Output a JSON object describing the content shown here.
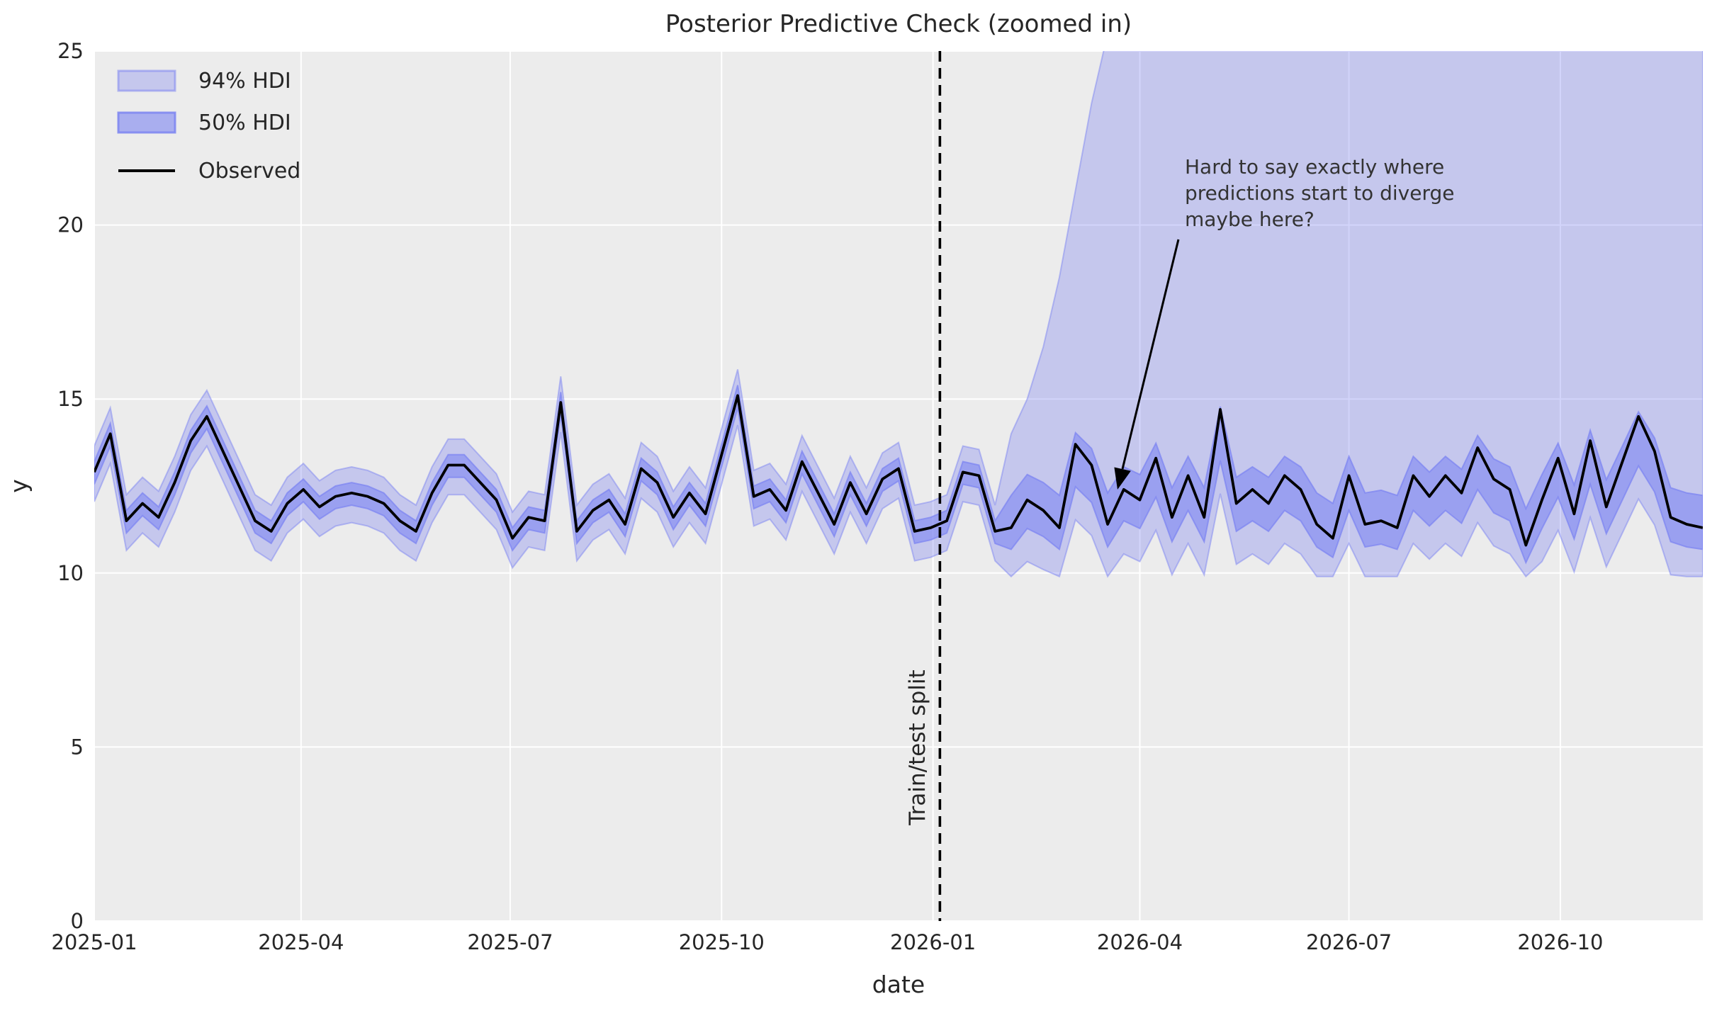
{
  "title": "Posterior Predictive Check (zoomed in)",
  "axes": {
    "xlabel": "date",
    "ylabel": "y",
    "x_tick_labels": [
      "2025-01",
      "2025-04",
      "2025-07",
      "2025-10",
      "2026-01",
      "2026-04",
      "2026-07",
      "2026-10"
    ],
    "y_tick_labels": [
      "0",
      "5",
      "10",
      "15",
      "20",
      "25"
    ],
    "ylim": [
      0,
      25
    ],
    "grid": "white on light-gray axes background"
  },
  "legend": {
    "items": [
      {
        "label": "94% HDI",
        "swatch": "light-purple band"
      },
      {
        "label": "50% HDI",
        "swatch": "medium-purple band"
      },
      {
        "label": "Observed",
        "swatch": "black line"
      }
    ]
  },
  "split": {
    "label": "Train/test split",
    "date": "2026-01-04",
    "style": "black dashed vertical line"
  },
  "annotation": {
    "lines": [
      "Hard to say exactly where",
      "predictions start to diverge",
      "maybe here?"
    ],
    "arrow_tip": {
      "date": "2026-03-20",
      "y": 12.4
    },
    "arrow_start": {
      "date": "2026-04-17",
      "y": 19.6
    }
  },
  "colors": {
    "figure_bg": "#ffffff",
    "plot_bg": "#ececec",
    "grid": "#ffffff",
    "band_base": "#7d85f1",
    "band94_alpha": 0.35,
    "band50_alpha": 0.6,
    "observed": "#000000",
    "text": "#262626"
  },
  "chart_data": {
    "type": "line",
    "title": "Posterior Predictive Check (zoomed in)",
    "xlabel": "date",
    "ylabel": "y",
    "ylim": [
      0,
      25
    ],
    "x_start": "2025-01-01",
    "x_step_days": 7,
    "train_test_split_date": "2026-01-04",
    "legend_position": "upper left",
    "dates": [
      "2025-01-01",
      "2025-01-08",
      "2025-01-15",
      "2025-01-22",
      "2025-01-29",
      "2025-02-05",
      "2025-02-12",
      "2025-02-19",
      "2025-02-26",
      "2025-03-05",
      "2025-03-12",
      "2025-03-19",
      "2025-03-26",
      "2025-04-02",
      "2025-04-09",
      "2025-04-16",
      "2025-04-23",
      "2025-04-30",
      "2025-05-07",
      "2025-05-14",
      "2025-05-21",
      "2025-05-28",
      "2025-06-04",
      "2025-06-11",
      "2025-06-18",
      "2025-06-25",
      "2025-07-02",
      "2025-07-09",
      "2025-07-16",
      "2025-07-23",
      "2025-07-30",
      "2025-08-06",
      "2025-08-13",
      "2025-08-20",
      "2025-08-27",
      "2025-09-03",
      "2025-09-10",
      "2025-09-17",
      "2025-09-24",
      "2025-10-01",
      "2025-10-08",
      "2025-10-15",
      "2025-10-22",
      "2025-10-29",
      "2025-11-05",
      "2025-11-12",
      "2025-11-19",
      "2025-11-26",
      "2025-12-03",
      "2025-12-10",
      "2025-12-17",
      "2025-12-24",
      "2025-12-31",
      "2026-01-07",
      "2026-01-14",
      "2026-01-21",
      "2026-01-28",
      "2026-02-04",
      "2026-02-11",
      "2026-02-18",
      "2026-02-25",
      "2026-03-04",
      "2026-03-11",
      "2026-03-18",
      "2026-03-25",
      "2026-04-01",
      "2026-04-08",
      "2026-04-15",
      "2026-04-22",
      "2026-04-29",
      "2026-05-06",
      "2026-05-13",
      "2026-05-20",
      "2026-05-27",
      "2026-06-03",
      "2026-06-10",
      "2026-06-17",
      "2026-06-24",
      "2026-07-01",
      "2026-07-08",
      "2026-07-15",
      "2026-07-22",
      "2026-07-29",
      "2026-08-05",
      "2026-08-12",
      "2026-08-19",
      "2026-08-26",
      "2026-09-02",
      "2026-09-09",
      "2026-09-16",
      "2026-09-23",
      "2026-09-30",
      "2026-10-07",
      "2026-10-14",
      "2026-10-21",
      "2026-10-28",
      "2026-11-04",
      "2026-11-11",
      "2026-11-18",
      "2026-11-25",
      "2026-12-02"
    ],
    "series": [
      {
        "name": "Observed",
        "values": [
          12.9,
          14.0,
          11.5,
          12.0,
          11.6,
          12.6,
          13.8,
          14.5,
          13.5,
          12.5,
          11.5,
          11.2,
          12.0,
          12.4,
          11.9,
          12.2,
          12.3,
          12.2,
          12.0,
          11.5,
          11.2,
          12.3,
          13.1,
          13.1,
          12.6,
          12.1,
          11.0,
          11.6,
          11.5,
          14.9,
          11.2,
          11.8,
          12.1,
          11.4,
          13.0,
          12.6,
          11.6,
          12.3,
          11.7,
          13.4,
          15.1,
          12.2,
          12.4,
          11.8,
          13.2,
          12.3,
          11.4,
          12.6,
          11.7,
          12.7,
          13.0,
          11.2,
          11.3,
          11.5,
          12.9,
          12.8,
          11.2,
          11.3,
          12.1,
          11.8,
          11.3,
          13.7,
          13.1,
          11.4,
          12.4,
          12.1,
          13.3,
          11.6,
          12.8,
          11.6,
          14.7,
          12.0,
          12.4,
          12.0,
          12.8,
          12.4,
          11.4,
          11.0,
          12.8,
          11.4,
          11.5,
          11.3,
          12.8,
          12.2,
          12.8,
          12.3,
          13.6,
          12.7,
          12.4,
          10.8,
          12.1,
          13.3,
          11.7,
          13.8,
          11.9,
          13.2,
          14.5,
          13.5,
          11.6,
          11.4,
          11.3
        ]
      },
      {
        "name": "50% HDI low",
        "values": [
          12.55,
          13.65,
          11.15,
          11.65,
          11.25,
          12.25,
          13.45,
          14.15,
          13.15,
          12.15,
          11.15,
          10.85,
          11.65,
          12.05,
          11.55,
          11.85,
          11.95,
          11.85,
          11.65,
          11.15,
          10.85,
          11.95,
          12.75,
          12.75,
          12.25,
          11.75,
          10.65,
          11.25,
          11.15,
          14.55,
          10.85,
          11.45,
          11.75,
          11.05,
          12.65,
          12.25,
          11.25,
          11.95,
          11.35,
          13.05,
          14.75,
          11.85,
          12.05,
          11.45,
          12.85,
          11.95,
          11.05,
          12.25,
          11.35,
          12.35,
          12.65,
          10.85,
          10.95,
          11.15,
          12.55,
          12.45,
          10.85,
          10.68,
          11.28,
          11.05,
          10.68,
          12.48,
          12.03,
          10.75,
          11.5,
          11.28,
          12.18,
          10.9,
          11.8,
          10.9,
          13.23,
          11.2,
          11.5,
          11.2,
          11.8,
          11.5,
          10.75,
          10.45,
          11.8,
          10.75,
          10.83,
          10.68,
          11.8,
          11.35,
          11.8,
          11.43,
          12.4,
          11.73,
          11.5,
          10.3,
          11.28,
          12.18,
          10.98,
          12.55,
          11.13,
          12.1,
          13.08,
          12.33,
          10.9,
          10.75,
          10.68
        ]
      },
      {
        "name": "50% HDI high",
        "values": [
          13.2,
          14.3,
          11.8,
          12.3,
          11.9,
          12.9,
          14.1,
          14.8,
          13.8,
          12.8,
          11.8,
          11.5,
          12.3,
          12.7,
          12.2,
          12.5,
          12.6,
          12.5,
          12.3,
          11.8,
          11.5,
          12.6,
          13.4,
          13.4,
          12.9,
          12.4,
          11.3,
          11.9,
          11.8,
          15.2,
          11.5,
          12.1,
          12.4,
          11.7,
          13.3,
          12.9,
          11.9,
          12.6,
          12.0,
          13.7,
          15.4,
          12.5,
          12.7,
          12.1,
          13.5,
          12.6,
          11.7,
          12.9,
          12.0,
          13.0,
          13.3,
          11.5,
          11.6,
          11.8,
          13.2,
          13.1,
          11.5,
          12.23,
          12.83,
          12.6,
          12.23,
          14.03,
          13.58,
          12.3,
          13.05,
          12.83,
          13.73,
          12.45,
          13.35,
          12.45,
          14.78,
          12.75,
          13.05,
          12.75,
          13.35,
          13.05,
          12.3,
          12.0,
          13.35,
          12.3,
          12.38,
          12.23,
          13.35,
          12.9,
          13.35,
          12.98,
          13.95,
          13.28,
          13.05,
          11.85,
          12.83,
          13.73,
          12.53,
          14.1,
          12.68,
          13.65,
          14.63,
          13.88,
          12.45,
          12.3,
          12.23
        ]
      },
      {
        "name": "94% HDI low",
        "values": [
          12.05,
          13.15,
          10.65,
          11.15,
          10.75,
          11.75,
          12.95,
          13.65,
          12.65,
          11.65,
          10.65,
          10.35,
          11.15,
          11.55,
          11.05,
          11.35,
          11.45,
          11.35,
          11.15,
          10.65,
          10.35,
          11.45,
          12.25,
          12.25,
          11.75,
          11.25,
          10.15,
          10.75,
          10.65,
          14.05,
          10.35,
          10.95,
          11.25,
          10.55,
          12.15,
          11.75,
          10.75,
          11.45,
          10.85,
          12.55,
          14.25,
          11.35,
          11.55,
          10.95,
          12.35,
          11.45,
          10.55,
          11.75,
          10.85,
          11.85,
          12.15,
          10.35,
          10.45,
          10.65,
          12.05,
          11.95,
          10.35,
          9.9,
          10.33,
          10.1,
          9.9,
          11.53,
          11.08,
          9.9,
          10.55,
          10.33,
          11.23,
          9.95,
          10.85,
          9.95,
          12.28,
          10.25,
          10.55,
          10.25,
          10.85,
          10.55,
          9.9,
          9.9,
          10.85,
          9.9,
          9.9,
          9.9,
          10.85,
          10.4,
          10.85,
          10.48,
          11.45,
          10.78,
          10.55,
          9.9,
          10.33,
          11.23,
          10.03,
          11.6,
          10.18,
          11.15,
          12.13,
          11.38,
          9.95,
          9.9,
          9.9
        ]
      },
      {
        "name": "94% HDI high",
        "values": [
          13.65,
          14.75,
          12.25,
          12.75,
          12.35,
          13.35,
          14.55,
          15.25,
          14.25,
          13.25,
          12.25,
          11.95,
          12.75,
          13.15,
          12.65,
          12.95,
          13.05,
          12.95,
          12.75,
          12.25,
          11.95,
          13.05,
          13.85,
          13.85,
          13.35,
          12.85,
          11.75,
          12.35,
          12.25,
          15.65,
          11.95,
          12.55,
          12.85,
          12.15,
          13.75,
          13.35,
          12.35,
          13.05,
          12.45,
          14.15,
          15.85,
          12.95,
          13.15,
          12.55,
          13.95,
          13.05,
          12.15,
          13.35,
          12.45,
          13.45,
          13.75,
          11.95,
          12.05,
          12.25,
          13.65,
          13.55,
          11.95,
          14.0,
          15.0,
          16.5,
          18.5,
          21.0,
          23.5,
          25.5,
          27.0,
          27.0,
          27.0,
          27.0,
          27.0,
          27.0,
          27.0,
          27.0,
          27.0,
          27.0,
          27.0,
          27.0,
          27.0,
          27.0,
          27.0,
          27.0,
          27.0,
          27.0,
          27.0,
          27.0,
          27.0,
          27.0,
          27.0,
          27.0,
          27.0,
          27.0,
          27.0,
          27.0,
          27.0,
          27.0,
          27.0,
          27.0,
          27.0,
          27.0,
          27.0,
          27.0,
          27.0
        ]
      }
    ]
  }
}
